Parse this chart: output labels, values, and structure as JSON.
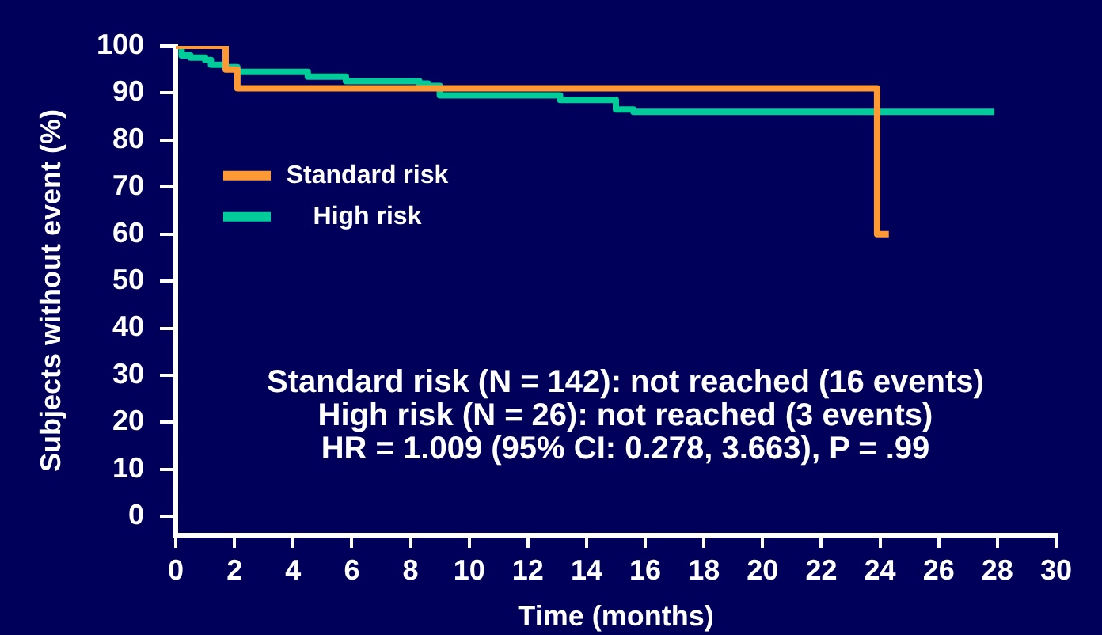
{
  "chart_data": {
    "type": "step",
    "xlabel": "Time (months)",
    "ylabel": "Subjects without event (%)",
    "xlim": [
      0,
      30
    ],
    "xticks": [
      0,
      2,
      4,
      6,
      8,
      10,
      12,
      14,
      16,
      18,
      20,
      22,
      24,
      26,
      28,
      30
    ],
    "ylim": [
      -4,
      100
    ],
    "yticks": [
      0,
      10,
      20,
      30,
      40,
      50,
      60,
      70,
      80,
      90,
      100
    ],
    "legend": "top left",
    "marker": "none",
    "series": [
      {
        "name": "Standard risk",
        "color": "#ff9933",
        "x": [
          0,
          1.7,
          2.1,
          23.9,
          24.3
        ],
        "values": [
          100,
          95,
          91,
          60,
          60
        ]
      },
      {
        "name": "High risk",
        "color": "#00cc99",
        "x": [
          0,
          0.2,
          0.5,
          1,
          1.2,
          1.7,
          2.1,
          4.5,
          5.8,
          8.3,
          8.6,
          9,
          13.1,
          15,
          15.6,
          27.9
        ],
        "values": [
          100,
          98,
          97.5,
          97,
          96,
          95.5,
          94.5,
          93.5,
          92.5,
          92,
          91.5,
          89.5,
          88.5,
          86.5,
          86,
          86
        ]
      }
    ],
    "annotations": [
      "Standard risk (N = 142): not reached (16 events)",
      "High risk (N = 26): not reached (3 events)",
      "HR = 1.009 (95% CI: 0.278, 3.663), P = .99"
    ]
  }
}
